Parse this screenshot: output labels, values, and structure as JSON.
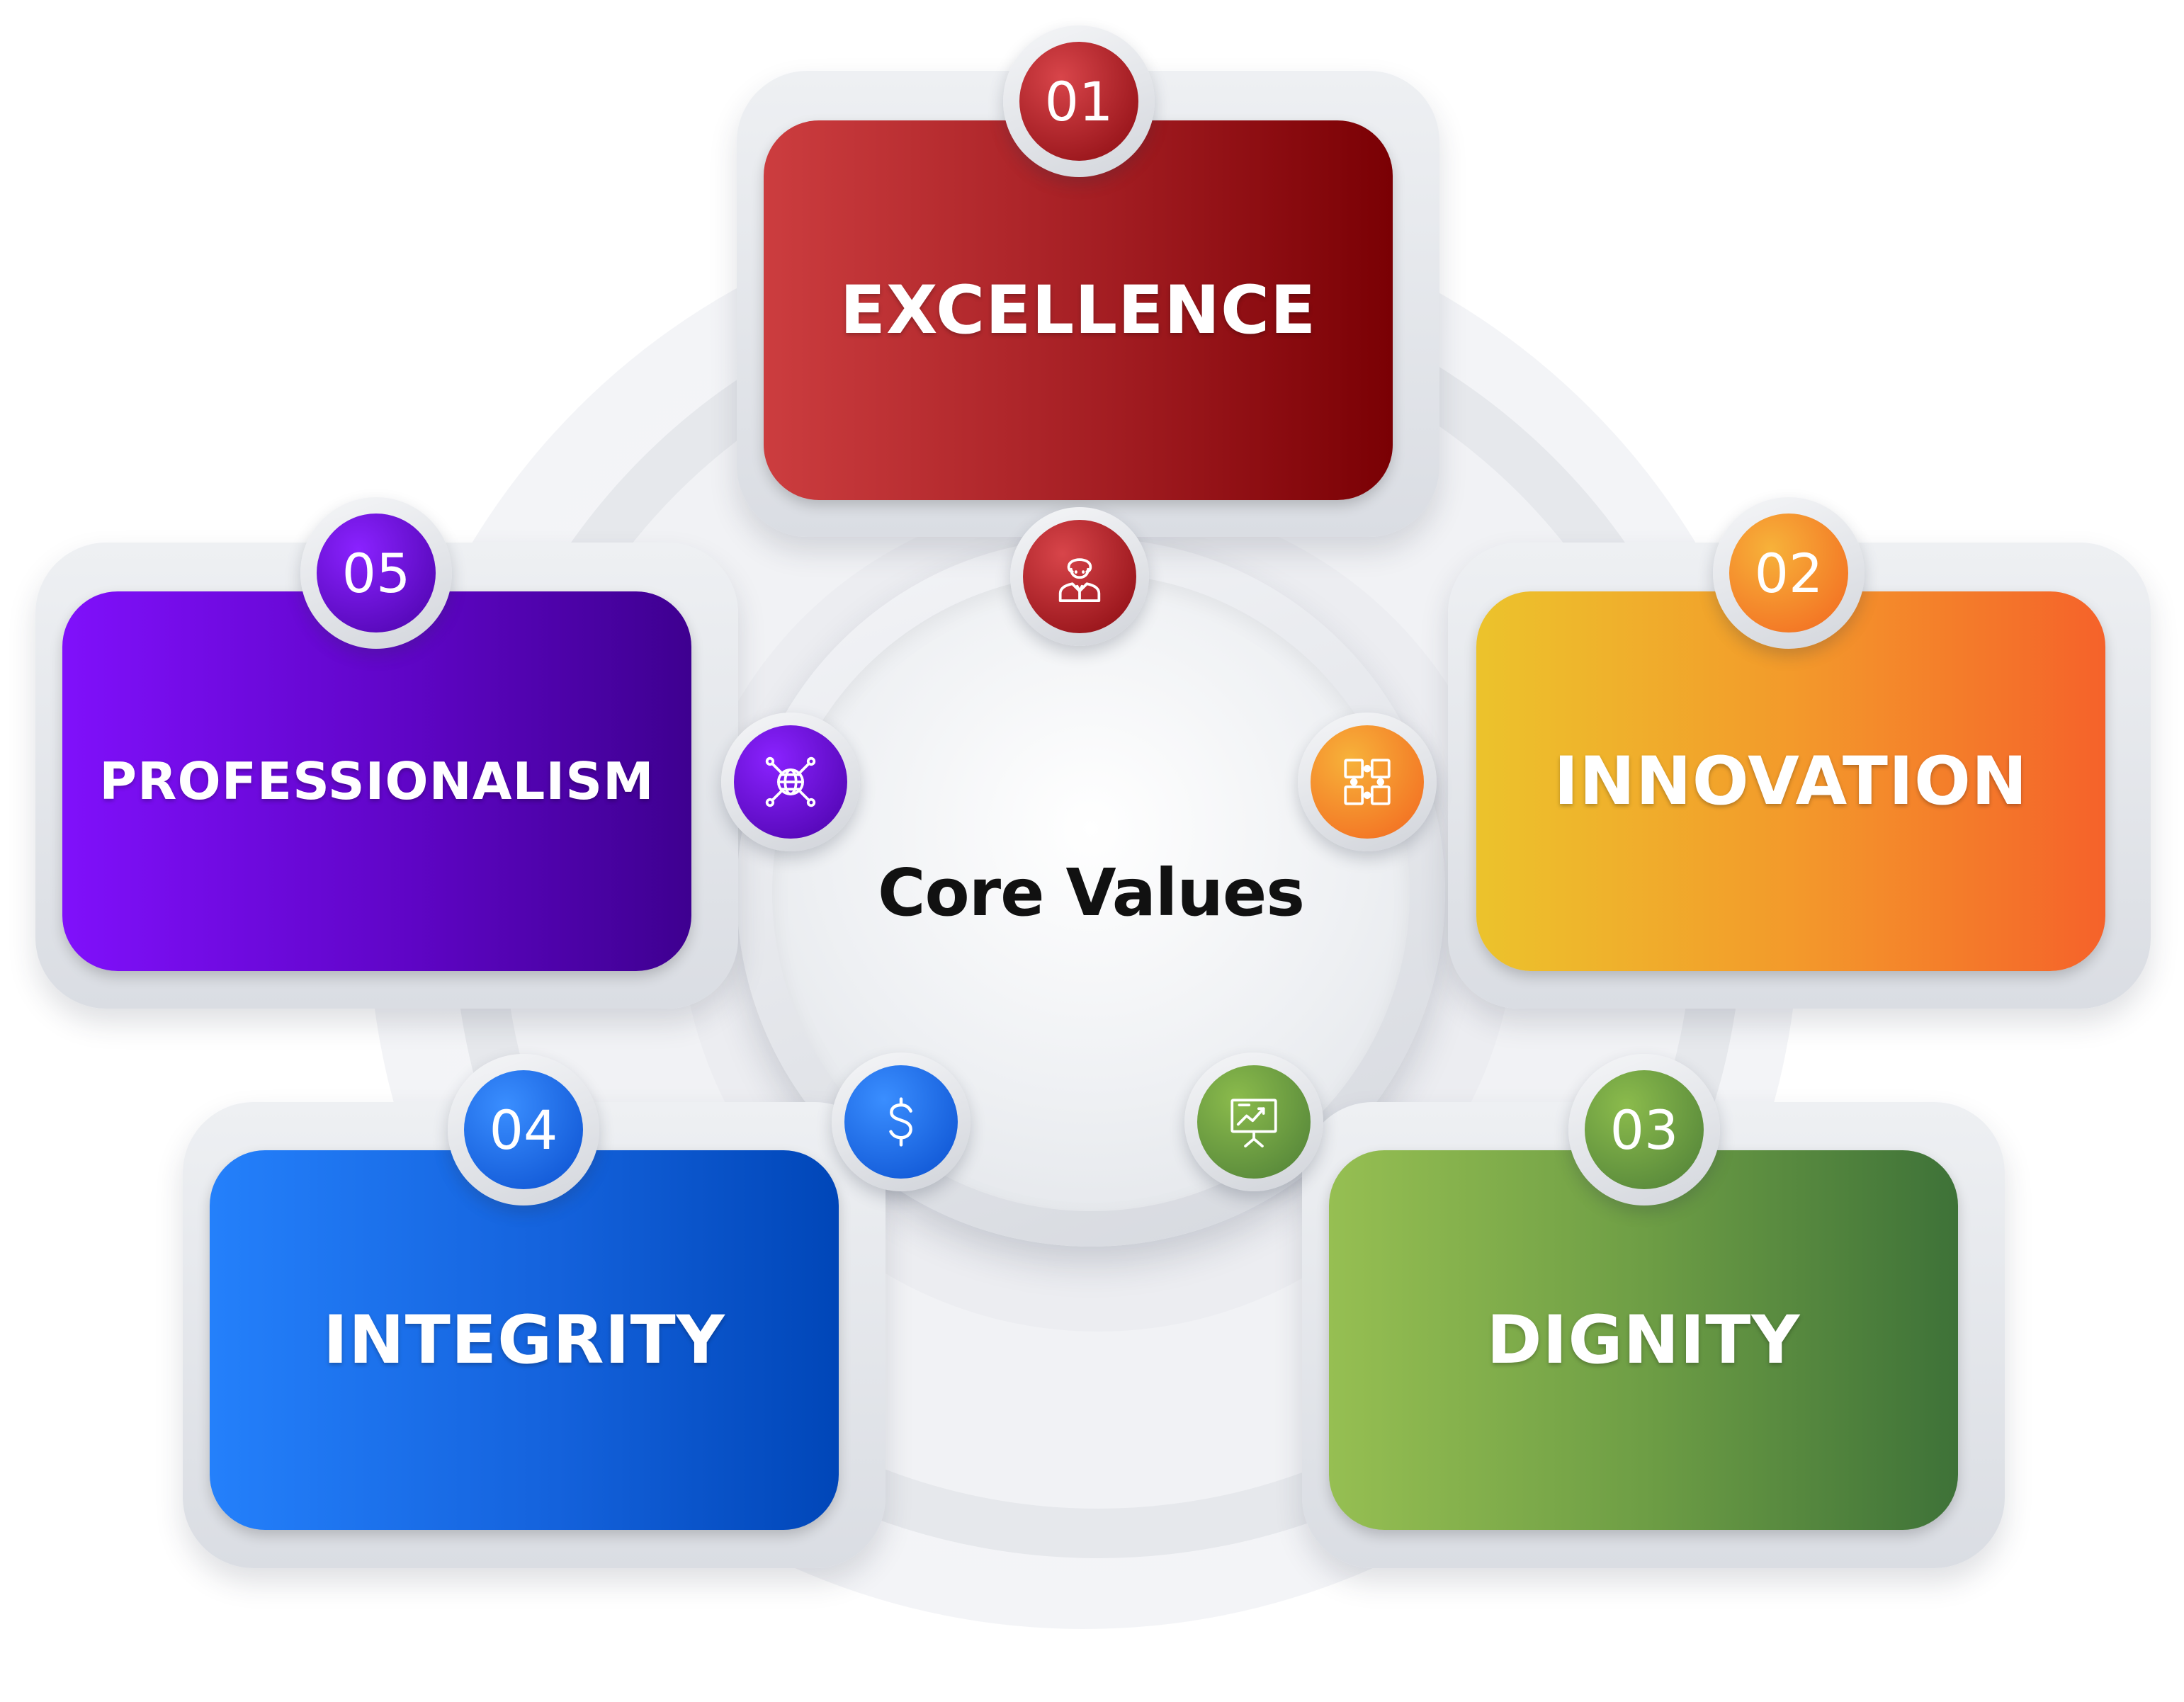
{
  "center": {
    "title": "Core Values"
  },
  "values": [
    {
      "number": "01",
      "label": "EXCELLENCE",
      "icon": "businessman-icon",
      "color": "#b0252a"
    },
    {
      "number": "02",
      "label": "INNOVATION",
      "icon": "puzzle-network-icon",
      "color": "#f28a2a"
    },
    {
      "number": "03",
      "label": "DIGNITY",
      "icon": "presentation-chart-icon",
      "color": "#6e9e45"
    },
    {
      "number": "04",
      "label": "INTEGRITY",
      "icon": "dollar-icon",
      "color": "#1462dc"
    },
    {
      "number": "05",
      "label": "PROFESSIONALISM",
      "icon": "globe-network-icon",
      "color": "#6006d0"
    }
  ]
}
